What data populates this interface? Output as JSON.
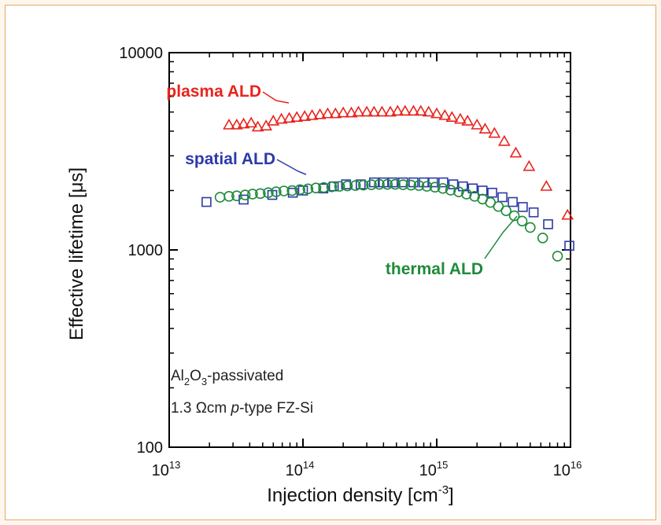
{
  "chart_data": {
    "type": "scatter",
    "title": "",
    "xlabel": "Injection density [cm",
    "xlabel_superscript": "-3",
    "xlabel_suffix": "]",
    "ylabel": "Effective lifetime [μs]",
    "xscale": "log",
    "yscale": "log",
    "xlim": [
      10000000000000.0,
      1e+16
    ],
    "ylim": [
      100,
      10000
    ],
    "x_tick_labels": [
      {
        "base": "10",
        "exp": "13"
      },
      {
        "base": "10",
        "exp": "14"
      },
      {
        "base": "10",
        "exp": "15"
      },
      {
        "base": "10",
        "exp": "16"
      }
    ],
    "y_tick_labels": [
      "100",
      "1000",
      "10000"
    ],
    "grid": false,
    "legend": "inline annotations",
    "series": [
      {
        "name": "plasma ALD",
        "marker": "triangle",
        "color": "#e8241c",
        "x": [
          28000000000000.0,
          32000000000000.0,
          36000000000000.0,
          41000000000000.0,
          46000000000000.0,
          53000000000000.0,
          60000000000000.0,
          69000000000000.0,
          79000000000000.0,
          90000000000000.0,
          103000000000000.0,
          117000000000000.0,
          134000000000000.0,
          153000000000000.0,
          175000000000000.0,
          200000000000000.0,
          230000000000000.0,
          260000000000000.0,
          300000000000000.0,
          340000000000000.0,
          390000000000000.0,
          450000000000000.0,
          510000000000000.0,
          580000000000000.0,
          670000000000000.0,
          760000000000000.0,
          870000000000000.0,
          1000000000000000.0,
          1150000000000000.0,
          1300000000000000.0,
          1500000000000000.0,
          1700000000000000.0,
          2000000000000000.0,
          2300000000000000.0,
          2700000000000000.0,
          3200000000000000.0,
          3900000000000000.0,
          4900000000000000.0,
          6600000000000000.0,
          9500000000000000.0
        ],
        "y": [
          4300,
          4300,
          4350,
          4400,
          4200,
          4250,
          4500,
          4600,
          4650,
          4700,
          4750,
          4800,
          4850,
          4900,
          4900,
          4950,
          4950,
          5000,
          5000,
          5000,
          5000,
          5000,
          5050,
          5050,
          5050,
          5050,
          5000,
          4900,
          4800,
          4700,
          4600,
          4500,
          4300,
          4100,
          3900,
          3550,
          3100,
          2650,
          2100,
          1500
        ]
      },
      {
        "name": "spatial ALD",
        "marker": "square",
        "color": "#2b3aa8",
        "x": [
          19000000000000.0,
          36000000000000.0,
          59000000000000.0,
          84000000000000.0,
          100000000000000.0,
          142000000000000.0,
          170000000000000.0,
          210000000000000.0,
          270000000000000.0,
          340000000000000.0,
          400000000000000.0,
          470000000000000.0,
          560000000000000.0,
          670000000000000.0,
          800000000000000.0,
          940000000000000.0,
          1120000000000000.0,
          1330000000000000.0,
          1570000000000000.0,
          1860000000000000.0,
          2200000000000000.0,
          2600000000000000.0,
          3100000000000000.0,
          3700000000000000.0,
          4400000000000000.0,
          5300000000000000.0,
          6800000000000000.0,
          9800000000000000.0
        ],
        "y": [
          1750,
          1800,
          1900,
          1950,
          2000,
          2050,
          2100,
          2150,
          2150,
          2200,
          2200,
          2200,
          2200,
          2200,
          2200,
          2200,
          2200,
          2150,
          2100,
          2050,
          2000,
          1950,
          1850,
          1750,
          1650,
          1550,
          1350,
          1050
        ]
      },
      {
        "name": "thermal ALD",
        "marker": "circle",
        "color": "#1f8a3a",
        "x": [
          24000000000000.0,
          28000000000000.0,
          32000000000000.0,
          37000000000000.0,
          42000000000000.0,
          48000000000000.0,
          55000000000000.0,
          63000000000000.0,
          72000000000000.0,
          83000000000000.0,
          95000000000000.0,
          109000000000000.0,
          125000000000000.0,
          143000000000000.0,
          164000000000000.0,
          188000000000000.0,
          215000000000000.0,
          247000000000000.0,
          283000000000000.0,
          325000000000000.0,
          372000000000000.0,
          427000000000000.0,
          489000000000000.0,
          560000000000000.0,
          642000000000000.0,
          736000000000000.0,
          844000000000000.0,
          970000000000000.0,
          1110000000000000.0,
          1270000000000000.0,
          1460000000000000.0,
          1670000000000000.0,
          1920000000000000.0,
          2200000000000000.0,
          2520000000000000.0,
          2890000000000000.0,
          3300000000000000.0,
          3800000000000000.0,
          4350000000000000.0,
          5000000000000000.0,
          6200000000000000.0,
          8000000000000000.0
        ],
        "y": [
          1850,
          1870,
          1880,
          1900,
          1920,
          1930,
          1950,
          1970,
          1990,
          2000,
          2020,
          2040,
          2060,
          2070,
          2090,
          2100,
          2110,
          2120,
          2130,
          2140,
          2150,
          2150,
          2150,
          2140,
          2130,
          2120,
          2100,
          2080,
          2050,
          2010,
          1970,
          1920,
          1870,
          1810,
          1740,
          1660,
          1580,
          1490,
          1400,
          1300,
          1150,
          930
        ]
      }
    ],
    "annotations": [
      {
        "text": "plasma ALD",
        "color": "#e8241c"
      },
      {
        "text": "spatial ALD",
        "color": "#2b3aa8"
      },
      {
        "text": "thermal ALD",
        "color": "#1f8a3a"
      }
    ],
    "inset_text": {
      "line1": {
        "p1": "Al",
        "s1": "2",
        "p2": "O",
        "s2": "3",
        "p3": "-passivated"
      },
      "line2": {
        "p1": "1.3 Ωcm ",
        "italic": "p",
        "p2": "-type FZ-Si"
      }
    }
  }
}
